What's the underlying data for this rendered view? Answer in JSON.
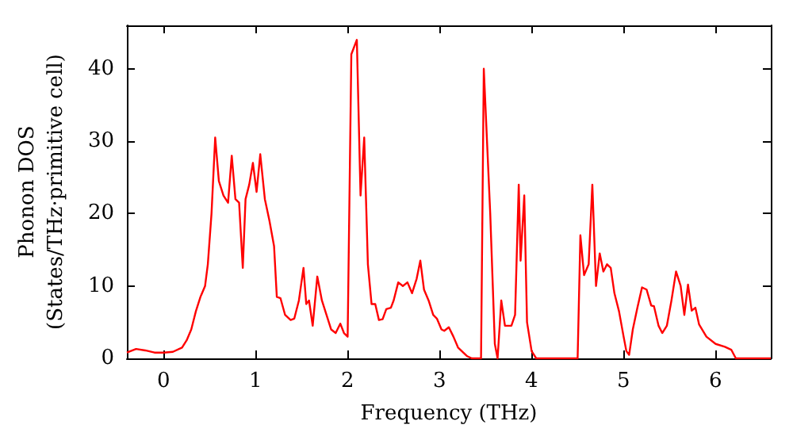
{
  "chart_data": {
    "type": "line",
    "xlabel": "Frequency (THz)",
    "ylabel": "Phonon DOS\n(States/THz·primitive cell)",
    "xlim": [
      -0.4,
      6.6
    ],
    "xticks": [
      0,
      1,
      2,
      3,
      4,
      5,
      6
    ],
    "ylim": [
      0,
      46
    ],
    "yticks": [
      0,
      10,
      20,
      30,
      40
    ],
    "grid": false,
    "marker": "none",
    "line_style": "solid",
    "series": [
      {
        "color": "#ff0000",
        "x": [
          -0.4,
          -0.3,
          -0.2,
          -0.1,
          0,
          0.1,
          0.2,
          0.25,
          0.3,
          0.35,
          0.4,
          0.45,
          0.48,
          0.52,
          0.56,
          0.6,
          0.65,
          0.7,
          0.74,
          0.78,
          0.82,
          0.86,
          0.89,
          0.93,
          0.97,
          1.01,
          1.05,
          1.1,
          1.15,
          1.2,
          1.23,
          1.27,
          1.32,
          1.38,
          1.42,
          1.47,
          1.52,
          1.55,
          1.58,
          1.62,
          1.67,
          1.72,
          1.77,
          1.82,
          1.87,
          1.92,
          1.96,
          2.0,
          2.04,
          2.1,
          2.14,
          2.18,
          2.22,
          2.26,
          2.3,
          2.34,
          2.38,
          2.42,
          2.47,
          2.5,
          2.55,
          2.6,
          2.65,
          2.7,
          2.75,
          2.79,
          2.83,
          2.88,
          2.93,
          2.97,
          3.02,
          3.05,
          3.1,
          3.15,
          3.2,
          3.3,
          3.35,
          3.45,
          3.48,
          3.55,
          3.6,
          3.63,
          3.67,
          3.71,
          3.78,
          3.82,
          3.86,
          3.88,
          3.92,
          3.95,
          4.0,
          4.05,
          4.5,
          4.53,
          4.57,
          4.62,
          4.66,
          4.7,
          4.74,
          4.78,
          4.82,
          4.86,
          4.9,
          4.95,
          5.0,
          5.03,
          5.06,
          5.1,
          5.15,
          5.2,
          5.25,
          5.3,
          5.33,
          5.38,
          5.42,
          5.47,
          5.52,
          5.57,
          5.62,
          5.66,
          5.7,
          5.74,
          5.78,
          5.82,
          5.9,
          6.0,
          6.1,
          6.17,
          6.22,
          6.6
        ],
        "values": [
          0.8,
          1.3,
          1.1,
          0.8,
          0.8,
          0.9,
          1.5,
          2.5,
          4,
          6.5,
          8.5,
          10,
          13,
          20,
          30.5,
          24.5,
          22.5,
          21.5,
          28,
          22,
          21.5,
          12.5,
          22,
          24,
          27,
          23,
          28.2,
          22,
          19,
          15.5,
          8.5,
          8.3,
          6,
          5.3,
          5.5,
          8,
          12.5,
          7.5,
          8,
          4.5,
          11.3,
          8,
          6,
          4,
          3.5,
          4.8,
          3.5,
          3.0,
          42,
          44,
          22.5,
          30.5,
          13,
          7.5,
          7.5,
          5.3,
          5.4,
          6.8,
          7,
          8,
          10.5,
          10,
          10.5,
          9,
          11,
          13.5,
          9.5,
          8,
          6,
          5.5,
          4,
          3.8,
          4.3,
          3,
          1.5,
          0.3,
          0,
          0,
          40,
          20,
          2,
          0,
          8,
          4.5,
          4.5,
          6,
          24,
          13.5,
          22.5,
          5,
          1,
          0,
          0,
          17,
          11.5,
          13,
          24,
          10,
          14.5,
          12,
          13,
          12.5,
          9,
          6.5,
          3,
          1,
          0.5,
          4,
          7,
          9.8,
          9.5,
          7.3,
          7.2,
          4.5,
          3.5,
          4.5,
          8,
          12,
          10,
          6,
          10.2,
          6.6,
          7,
          4.7,
          3,
          2,
          1.6,
          1.2,
          0,
          0
        ]
      }
    ]
  }
}
